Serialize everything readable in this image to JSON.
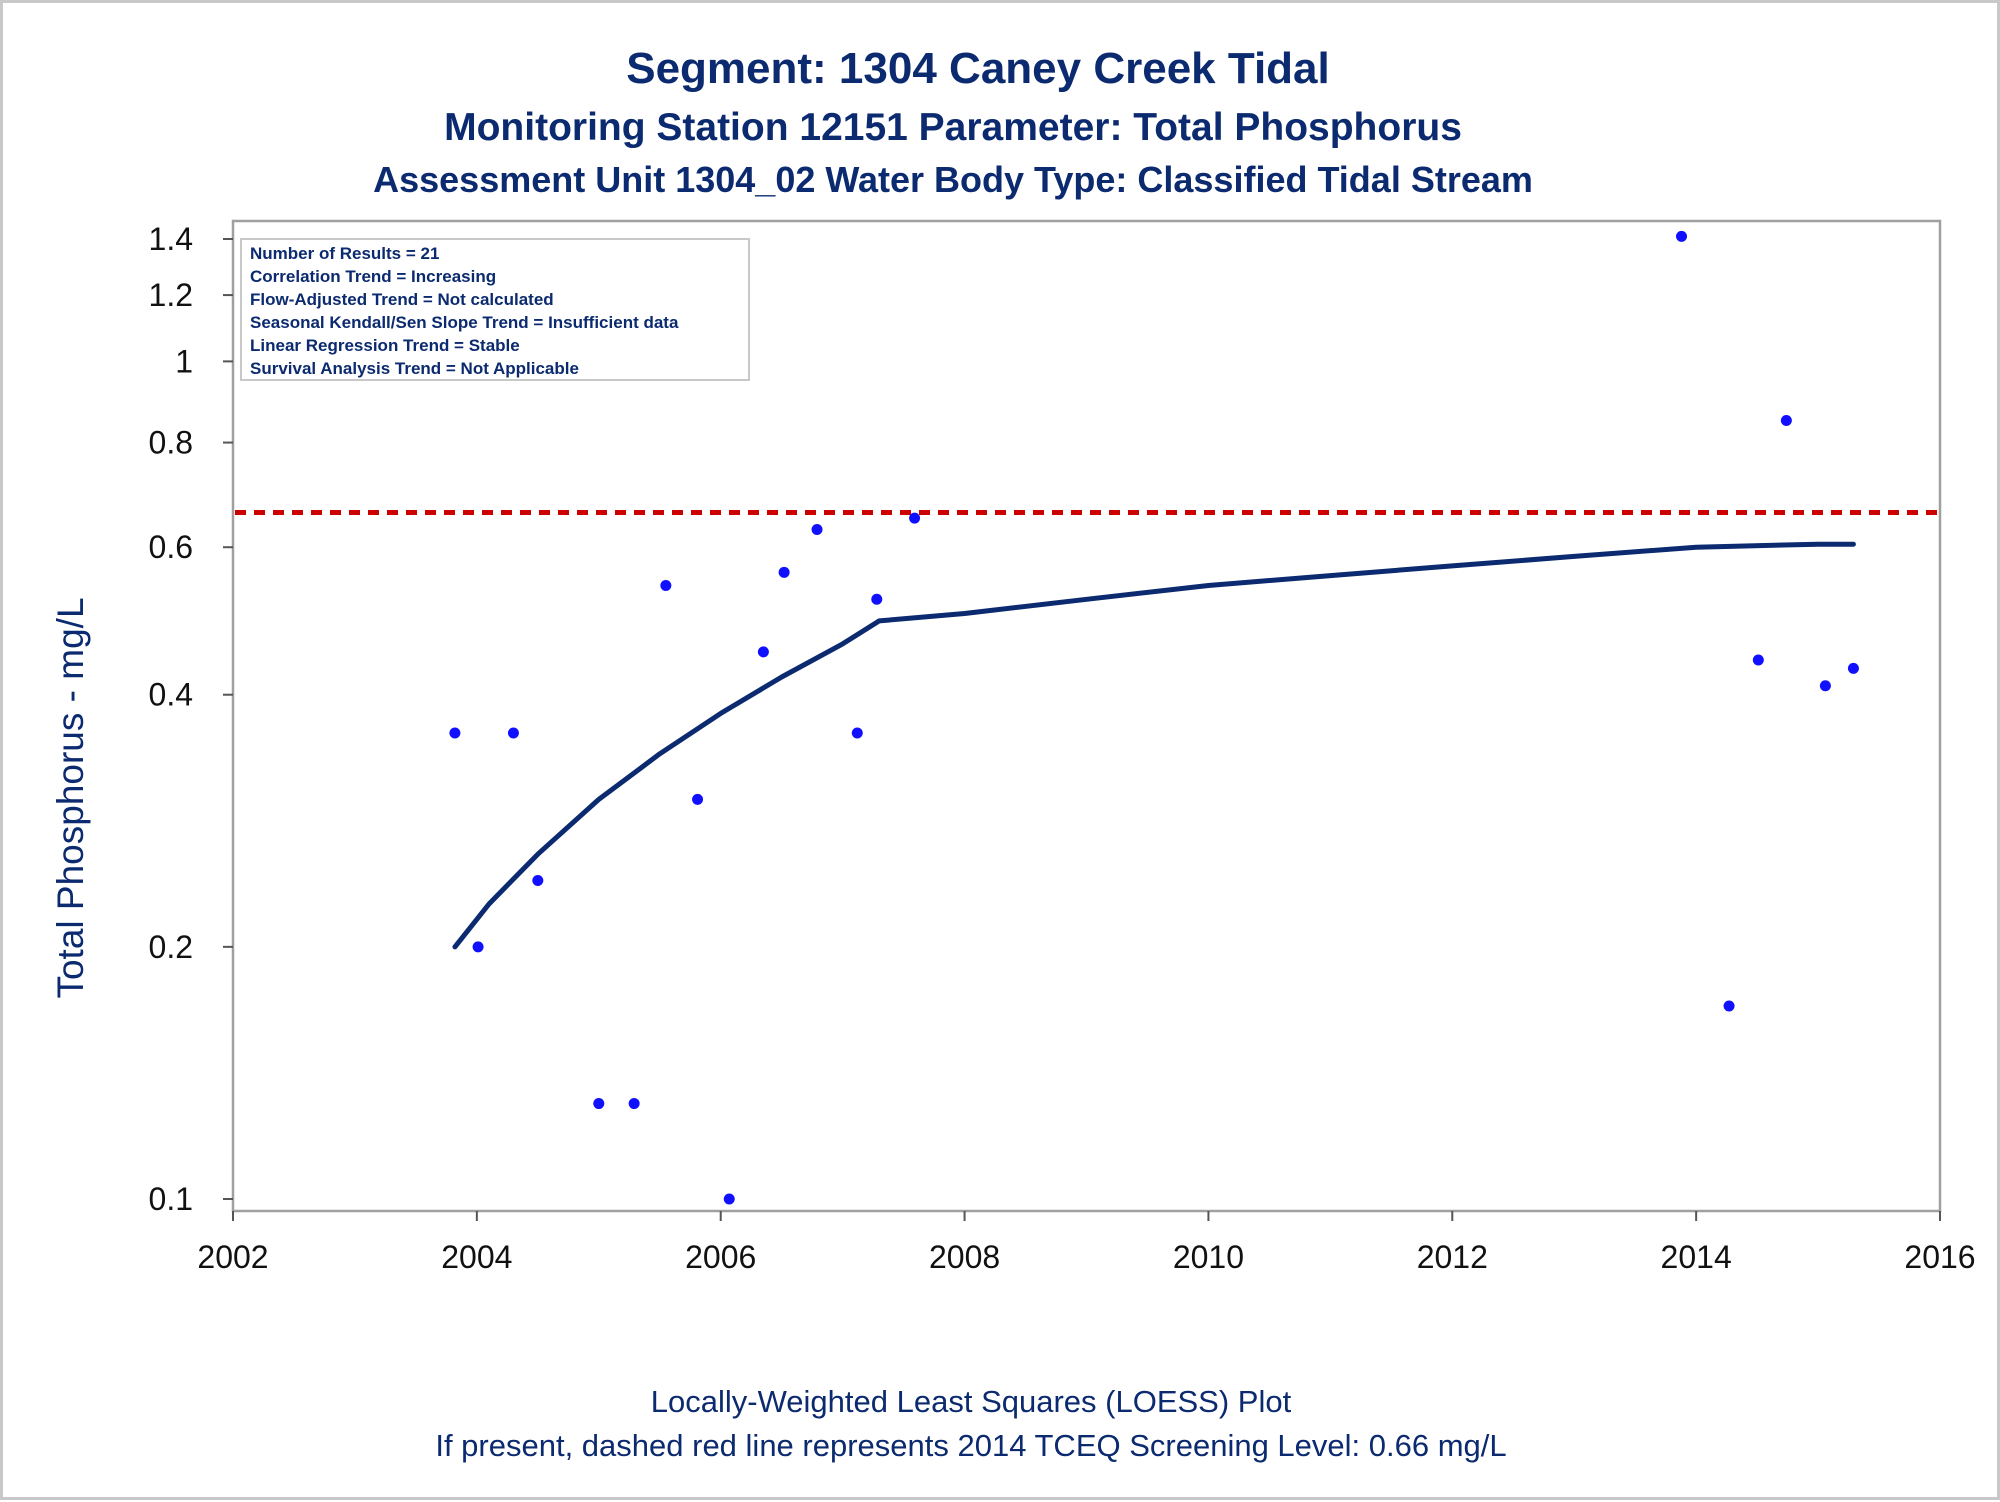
{
  "titles": {
    "line1": "Segment: 1304  Caney Creek Tidal",
    "line2": "Monitoring Station 12151 Parameter: Total Phosphorus",
    "line3": "Assessment Unit 1304_02   Water Body Type: Classified Tidal Stream"
  },
  "info_box": [
    "Number of Results = 21",
    "Correlation Trend = Increasing",
    "Flow-Adjusted Trend = Not calculated",
    "Seasonal Kendall/Sen Slope Trend = Insufficient data",
    "Linear Regression Trend = Stable",
    "Survival Analysis Trend = Not Applicable"
  ],
  "footnotes": {
    "line1": "Locally-Weighted Least Squares (LOESS) Plot",
    "line2": "If present, dashed red line represents 2014 TCEQ Screening Level: 0.66 mg/L"
  },
  "colors": {
    "points": "#1010ff",
    "loess": "#0b2a6f",
    "screening": "#cc0000",
    "text": "#0b2a6f",
    "axis": "#a0a0a0"
  },
  "chart_data": {
    "type": "scatter",
    "ylabel": "Total Phosphorus - mg/L",
    "xlabel": "",
    "y_scale": "log",
    "xlim": [
      2002,
      2016
    ],
    "ylim": [
      0.097,
      1.45
    ],
    "x_ticks": [
      2002,
      2004,
      2006,
      2008,
      2010,
      2012,
      2014,
      2016
    ],
    "y_ticks": [
      0.1,
      0.2,
      0.4,
      0.6,
      0.8,
      1,
      1.2,
      1.4
    ],
    "grid": false,
    "screening_level": 0.66,
    "points": [
      {
        "x": 2003.82,
        "y": 0.36
      },
      {
        "x": 2004.01,
        "y": 0.2
      },
      {
        "x": 2004.3,
        "y": 0.36
      },
      {
        "x": 2004.5,
        "y": 0.24
      },
      {
        "x": 2005.0,
        "y": 0.13
      },
      {
        "x": 2005.29,
        "y": 0.13
      },
      {
        "x": 2005.55,
        "y": 0.54
      },
      {
        "x": 2005.81,
        "y": 0.3
      },
      {
        "x": 2006.07,
        "y": 0.1
      },
      {
        "x": 2006.35,
        "y": 0.45
      },
      {
        "x": 2006.52,
        "y": 0.56
      },
      {
        "x": 2006.79,
        "y": 0.63
      },
      {
        "x": 2007.12,
        "y": 0.36
      },
      {
        "x": 2007.28,
        "y": 0.52
      },
      {
        "x": 2007.59,
        "y": 0.65
      },
      {
        "x": 2013.88,
        "y": 1.41
      },
      {
        "x": 2014.27,
        "y": 0.17
      },
      {
        "x": 2014.51,
        "y": 0.44
      },
      {
        "x": 2014.74,
        "y": 0.85
      },
      {
        "x": 2015.06,
        "y": 0.41
      },
      {
        "x": 2015.29,
        "y": 0.43
      }
    ],
    "loess": [
      {
        "x": 2003.82,
        "y": 0.2
      },
      {
        "x": 2004.1,
        "y": 0.225
      },
      {
        "x": 2004.5,
        "y": 0.258
      },
      {
        "x": 2005.0,
        "y": 0.3
      },
      {
        "x": 2005.5,
        "y": 0.34
      },
      {
        "x": 2006.0,
        "y": 0.38
      },
      {
        "x": 2006.5,
        "y": 0.42
      },
      {
        "x": 2007.0,
        "y": 0.46
      },
      {
        "x": 2007.3,
        "y": 0.49
      },
      {
        "x": 2008.0,
        "y": 0.5
      },
      {
        "x": 2009.0,
        "y": 0.52
      },
      {
        "x": 2010.0,
        "y": 0.54
      },
      {
        "x": 2011.0,
        "y": 0.555
      },
      {
        "x": 2012.0,
        "y": 0.57
      },
      {
        "x": 2013.0,
        "y": 0.585
      },
      {
        "x": 2014.0,
        "y": 0.6
      },
      {
        "x": 2015.0,
        "y": 0.605
      },
      {
        "x": 2015.29,
        "y": 0.605
      }
    ]
  }
}
